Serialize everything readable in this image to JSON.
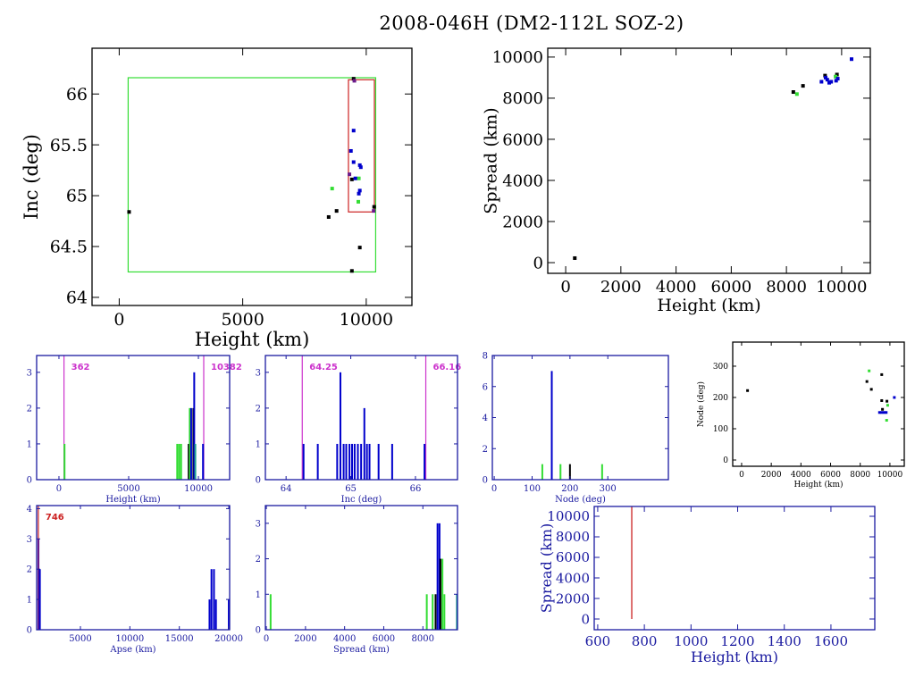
{
  "title": "2008-046H (DM2-112L SOZ-2)",
  "colors": {
    "black": "#000000",
    "blue": "#0000cc",
    "navy": "#1a1aa0",
    "green": "#33dd33",
    "red": "#cc2222",
    "magenta": "#cc33cc",
    "purple": "#6a1a8a",
    "teal": "#20a090"
  },
  "chart_data": [
    {
      "id": "inc-height",
      "type": "scatter",
      "xlabel": "Height (km)",
      "ylabel": "Inc (deg)",
      "xlim": [
        -1100,
        11850
      ],
      "ylim": [
        63.92,
        66.45
      ],
      "xticks": [
        0,
        5000,
        10000
      ],
      "yticks": [
        64,
        64.5,
        65,
        65.5,
        66
      ],
      "ytick_labels": [
        "64",
        "64.5",
        "65",
        "65.5",
        "66"
      ],
      "axis_color": "black",
      "boxes": [
        {
          "color": "green",
          "x": [
            362,
            10382
          ],
          "y": [
            64.25,
            66.16
          ]
        },
        {
          "color": "red",
          "x": [
            9280,
            10330
          ],
          "y": [
            64.84,
            66.14
          ]
        }
      ],
      "points": [
        {
          "x": 400,
          "y": 64.84,
          "c": "black"
        },
        {
          "x": 8480,
          "y": 64.79,
          "c": "black"
        },
        {
          "x": 8800,
          "y": 64.85,
          "c": "black"
        },
        {
          "x": 8620,
          "y": 65.07,
          "c": "green"
        },
        {
          "x": 9490,
          "y": 66.15,
          "c": "black"
        },
        {
          "x": 9520,
          "y": 66.13,
          "c": "purple"
        },
        {
          "x": 9490,
          "y": 65.64,
          "c": "blue"
        },
        {
          "x": 9380,
          "y": 65.44,
          "c": "blue"
        },
        {
          "x": 9490,
          "y": 65.33,
          "c": "blue"
        },
        {
          "x": 9740,
          "y": 65.3,
          "c": "blue"
        },
        {
          "x": 9780,
          "y": 65.28,
          "c": "blue"
        },
        {
          "x": 9700,
          "y": 65.17,
          "c": "green"
        },
        {
          "x": 9320,
          "y": 65.21,
          "c": "purple"
        },
        {
          "x": 9420,
          "y": 65.16,
          "c": "black"
        },
        {
          "x": 9560,
          "y": 65.17,
          "c": "blue"
        },
        {
          "x": 9740,
          "y": 65.05,
          "c": "blue"
        },
        {
          "x": 9700,
          "y": 65.02,
          "c": "blue"
        },
        {
          "x": 9680,
          "y": 64.94,
          "c": "green"
        },
        {
          "x": 10320,
          "y": 64.89,
          "c": "black"
        },
        {
          "x": 10300,
          "y": 64.85,
          "c": "purple"
        },
        {
          "x": 9740,
          "y": 64.49,
          "c": "black"
        },
        {
          "x": 9420,
          "y": 64.26,
          "c": "black"
        }
      ]
    },
    {
      "id": "spread-height",
      "type": "scatter",
      "xlabel": "Height (km)",
      "ylabel": "Spread (km)",
      "xlim": [
        -650,
        11040
      ],
      "ylim": [
        -520,
        10430
      ],
      "xticks": [
        0,
        2000,
        4000,
        6000,
        8000,
        10000
      ],
      "yticks": [
        0,
        2000,
        4000,
        6000,
        8000,
        10000
      ],
      "axis_color": "black",
      "points": [
        {
          "x": 330,
          "y": 220,
          "c": "black"
        },
        {
          "x": 8250,
          "y": 8300,
          "c": "black"
        },
        {
          "x": 8380,
          "y": 8200,
          "c": "green"
        },
        {
          "x": 8600,
          "y": 8600,
          "c": "black"
        },
        {
          "x": 9270,
          "y": 8800,
          "c": "blue"
        },
        {
          "x": 9400,
          "y": 9100,
          "c": "black"
        },
        {
          "x": 9420,
          "y": 9000,
          "c": "blue"
        },
        {
          "x": 9480,
          "y": 8900,
          "c": "blue"
        },
        {
          "x": 9550,
          "y": 8750,
          "c": "blue"
        },
        {
          "x": 9620,
          "y": 8800,
          "c": "blue"
        },
        {
          "x": 9830,
          "y": 9150,
          "c": "black"
        },
        {
          "x": 9780,
          "y": 9050,
          "c": "green"
        },
        {
          "x": 9860,
          "y": 8950,
          "c": "blue"
        },
        {
          "x": 9800,
          "y": 8850,
          "c": "blue"
        },
        {
          "x": 10360,
          "y": 9900,
          "c": "blue"
        }
      ]
    },
    {
      "id": "height-hist",
      "type": "bar",
      "xlabel": "Height (km)",
      "ylabel": "",
      "xlim": [
        -1600,
        12240
      ],
      "ylim": [
        0,
        3.47
      ],
      "xticks": [
        0,
        5000,
        10000
      ],
      "yticks": [
        0,
        1,
        2,
        3
      ],
      "axis_color": "navy",
      "vlines": [
        {
          "x": 362,
          "label": "362",
          "c": "magenta"
        },
        {
          "x": 10382,
          "label": "10382",
          "c": "magenta"
        }
      ],
      "bars": [
        {
          "x": 400,
          "v": 1,
          "c": "green"
        },
        {
          "x": 8480,
          "v": 1,
          "c": "green"
        },
        {
          "x": 8620,
          "v": 1,
          "c": "green"
        },
        {
          "x": 8760,
          "v": 1,
          "c": "green"
        },
        {
          "x": 9300,
          "v": 1,
          "c": "black"
        },
        {
          "x": 9380,
          "v": 2,
          "c": "green"
        },
        {
          "x": 9480,
          "v": 2,
          "c": "blue"
        },
        {
          "x": 9640,
          "v": 2,
          "c": "black"
        },
        {
          "x": 9700,
          "v": 3,
          "c": "blue"
        },
        {
          "x": 9780,
          "v": 1,
          "c": "teal"
        },
        {
          "x": 10330,
          "v": 1,
          "c": "blue"
        }
      ]
    },
    {
      "id": "inc-hist",
      "type": "bar",
      "xlabel": "Inc (deg)",
      "ylabel": "",
      "xlim": [
        63.68,
        66.65
      ],
      "ylim": [
        0,
        3.47
      ],
      "xticks": [
        64,
        65,
        66
      ],
      "yticks": [
        0,
        1,
        2,
        3
      ],
      "axis_color": "navy",
      "vlines": [
        {
          "x": 64.25,
          "label": "64.25",
          "c": "magenta"
        },
        {
          "x": 66.16,
          "label": "66.16",
          "c": "magenta"
        }
      ],
      "bars": [
        {
          "x": 64.27,
          "v": 1,
          "c": "blue"
        },
        {
          "x": 64.49,
          "v": 1,
          "c": "blue"
        },
        {
          "x": 64.79,
          "v": 1,
          "c": "blue"
        },
        {
          "x": 64.84,
          "v": 3,
          "c": "blue"
        },
        {
          "x": 64.89,
          "v": 1,
          "c": "blue"
        },
        {
          "x": 64.93,
          "v": 1,
          "c": "blue"
        },
        {
          "x": 64.98,
          "v": 1,
          "c": "blue"
        },
        {
          "x": 65.02,
          "v": 1,
          "c": "blue"
        },
        {
          "x": 65.06,
          "v": 1,
          "c": "blue"
        },
        {
          "x": 65.11,
          "v": 1,
          "c": "blue"
        },
        {
          "x": 65.16,
          "v": 1,
          "c": "blue"
        },
        {
          "x": 65.21,
          "v": 2,
          "c": "blue"
        },
        {
          "x": 65.25,
          "v": 1,
          "c": "blue"
        },
        {
          "x": 65.29,
          "v": 1,
          "c": "blue"
        },
        {
          "x": 65.43,
          "v": 1,
          "c": "blue"
        },
        {
          "x": 65.64,
          "v": 1,
          "c": "blue"
        },
        {
          "x": 66.14,
          "v": 1,
          "c": "blue"
        }
      ]
    },
    {
      "id": "node-hist",
      "type": "bar",
      "xlabel": "Node (deg)",
      "ylabel": "",
      "xlim": [
        -5,
        460
      ],
      "ylim": [
        0,
        8
      ],
      "xticks": [
        0,
        100,
        200,
        300
      ],
      "yticks": [
        0,
        2,
        4,
        6,
        8
      ],
      "axis_color": "navy",
      "bars": [
        {
          "x": 127,
          "v": 1,
          "c": "green"
        },
        {
          "x": 152,
          "v": 7,
          "c": "blue"
        },
        {
          "x": 175,
          "v": 1,
          "c": "green"
        },
        {
          "x": 200,
          "v": 1,
          "c": "black"
        },
        {
          "x": 285,
          "v": 1,
          "c": "green"
        }
      ]
    },
    {
      "id": "node-height",
      "type": "scatter",
      "xlabel": "Height (km)",
      "ylabel": "Node (deg)",
      "xlim": [
        -600,
        10970
      ],
      "ylim": [
        -20,
        377
      ],
      "xticks": [
        0,
        2000,
        4000,
        6000,
        8000,
        10000
      ],
      "yticks": [
        0,
        100,
        200,
        300
      ],
      "axis_color": "black",
      "points": [
        {
          "x": 400,
          "y": 222,
          "c": "black"
        },
        {
          "x": 8600,
          "y": 285,
          "c": "green"
        },
        {
          "x": 8450,
          "y": 251,
          "c": "black"
        },
        {
          "x": 8750,
          "y": 226,
          "c": "black"
        },
        {
          "x": 9450,
          "y": 273,
          "c": "black"
        },
        {
          "x": 9450,
          "y": 190,
          "c": "black"
        },
        {
          "x": 9800,
          "y": 188,
          "c": "black"
        },
        {
          "x": 9500,
          "y": 162,
          "c": "black"
        },
        {
          "x": 9300,
          "y": 152,
          "c": "blue"
        },
        {
          "x": 9450,
          "y": 152,
          "c": "blue"
        },
        {
          "x": 9600,
          "y": 152,
          "c": "blue"
        },
        {
          "x": 9750,
          "y": 152,
          "c": "blue"
        },
        {
          "x": 9850,
          "y": 175,
          "c": "green"
        },
        {
          "x": 9780,
          "y": 127,
          "c": "green"
        },
        {
          "x": 10300,
          "y": 200,
          "c": "blue"
        }
      ]
    },
    {
      "id": "apse-hist",
      "type": "bar",
      "xlabel": "Apse (km)",
      "ylabel": "",
      "xlim": [
        574,
        20085
      ],
      "ylim": [
        0,
        4.1
      ],
      "xticks": [
        5000,
        10000,
        15000,
        20000
      ],
      "yticks": [
        0,
        1,
        2,
        3,
        4
      ],
      "axis_color": "navy",
      "vlines": [
        {
          "x": 746,
          "label": "746",
          "c": "red"
        }
      ],
      "bars": [
        {
          "x": 760,
          "v": 3,
          "c": "purple"
        },
        {
          "x": 900,
          "v": 2,
          "c": "blue"
        },
        {
          "x": 18050,
          "v": 1,
          "c": "blue"
        },
        {
          "x": 18250,
          "v": 2,
          "c": "blue"
        },
        {
          "x": 18500,
          "v": 2,
          "c": "blue"
        },
        {
          "x": 18700,
          "v": 1,
          "c": "blue"
        },
        {
          "x": 20000,
          "v": 1,
          "c": "blue"
        }
      ]
    },
    {
      "id": "spread-hist",
      "type": "bar",
      "xlabel": "Spread (km)",
      "ylabel": "",
      "xlim": [
        -50,
        9770
      ],
      "ylim": [
        0,
        3.5
      ],
      "xticks": [
        0,
        2000,
        4000,
        6000,
        8000
      ],
      "yticks": [
        0,
        1,
        2,
        3
      ],
      "axis_color": "navy",
      "bars": [
        {
          "x": 217,
          "v": 1,
          "c": "green"
        },
        {
          "x": 8200,
          "v": 1,
          "c": "green"
        },
        {
          "x": 8500,
          "v": 1,
          "c": "green"
        },
        {
          "x": 8650,
          "v": 1,
          "c": "black"
        },
        {
          "x": 8750,
          "v": 3,
          "c": "blue"
        },
        {
          "x": 8850,
          "v": 3,
          "c": "blue"
        },
        {
          "x": 8900,
          "v": 2,
          "c": "black"
        },
        {
          "x": 9000,
          "v": 2,
          "c": "green"
        },
        {
          "x": 9100,
          "v": 1,
          "c": "green"
        },
        {
          "x": 9740,
          "v": 1,
          "c": "teal"
        }
      ]
    },
    {
      "id": "spread-height-zoom",
      "type": "line",
      "xlabel": "Height (km)",
      "ylabel": "Spread (km)",
      "xlim": [
        585,
        1788
      ],
      "ylim": [
        -1043,
        10956
      ],
      "xticks": [
        600,
        800,
        1000,
        1200,
        1400,
        1600
      ],
      "yticks": [
        0,
        2000,
        4000,
        6000,
        8000,
        10000
      ],
      "axis_color": "navy",
      "segments": [
        {
          "x": [
            746,
            746
          ],
          "y": [
            0,
            10956
          ],
          "c": "red"
        }
      ]
    }
  ]
}
